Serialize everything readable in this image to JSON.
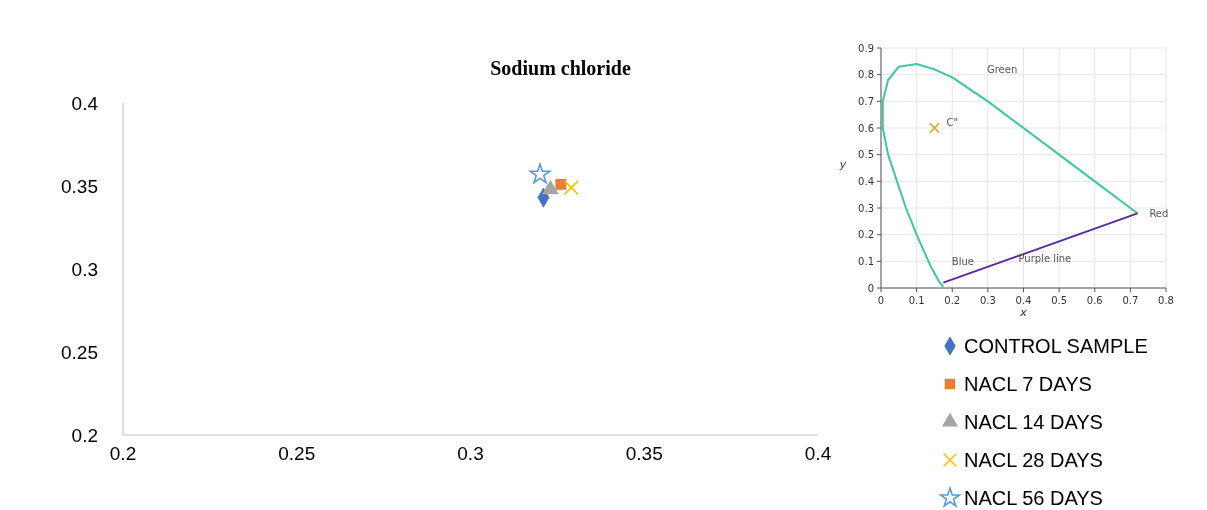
{
  "chart_data": [
    {
      "type": "scatter",
      "title": "Sodium chloride",
      "xlim": [
        0.2,
        0.4
      ],
      "ylim": [
        0.2,
        0.4
      ],
      "xticks": [
        0.2,
        0.25,
        0.3,
        0.35,
        0.4
      ],
      "yticks": [
        0.2,
        0.25,
        0.3,
        0.35,
        0.4
      ],
      "grid": false,
      "legend": "bottom right",
      "series": [
        {
          "name": "CONTROL SAMPLE",
          "color": "#4472c4",
          "marker": "diamond",
          "x": [
            0.321
          ],
          "values": [
            0.343
          ]
        },
        {
          "name": "NACL 7 DAYS",
          "color": "#ed7d31",
          "marker": "square",
          "x": [
            0.326
          ],
          "values": [
            0.351
          ]
        },
        {
          "name": "NACL 14 DAYS",
          "color": "#a5a5a5",
          "marker": "triangle",
          "x": [
            0.323
          ],
          "values": [
            0.348
          ]
        },
        {
          "name": "NACL 28 DAYS",
          "color": "#ffc000",
          "marker": "cross",
          "x": [
            0.329
          ],
          "values": [
            0.349
          ]
        },
        {
          "name": "NACL 56 DAYS",
          "color": "#5b9bd5",
          "marker": "star",
          "x": [
            0.32
          ],
          "values": [
            0.357
          ]
        }
      ]
    },
    {
      "type": "line",
      "xlabel": "x",
      "ylabel": "y",
      "xlim": [
        0,
        0.8
      ],
      "ylim": [
        0,
        0.9
      ],
      "xticks": [
        0,
        0.1,
        0.2,
        0.3,
        0.4,
        0.5,
        0.6,
        0.7,
        0.8
      ],
      "yticks": [
        0,
        0.1,
        0.2,
        0.3,
        0.4,
        0.5,
        0.6,
        0.7,
        0.8,
        0.9
      ],
      "grid": true,
      "legend": false,
      "series": [
        {
          "color": "#3cc8a0",
          "marker": "none",
          "x": [
            0.175,
            0.165,
            0.14,
            0.1,
            0.07,
            0.045,
            0.02,
            0.005,
            0.005,
            0.02,
            0.05,
            0.1,
            0.15,
            0.2,
            0.3,
            0.4,
            0.5,
            0.6,
            0.7,
            0.72
          ],
          "values": [
            0.005,
            0.02,
            0.08,
            0.2,
            0.3,
            0.4,
            0.5,
            0.6,
            0.7,
            0.78,
            0.83,
            0.84,
            0.82,
            0.79,
            0.7,
            0.6,
            0.5,
            0.4,
            0.3,
            0.28
          ]
        },
        {
          "color": "#5a2ca0",
          "marker": "none",
          "x": [
            0.72,
            0.175
          ],
          "values": [
            0.28,
            0.02
          ]
        },
        {
          "type": "scatter",
          "color": "#f0a020",
          "marker": "cross",
          "x": [
            0.15
          ],
          "values": [
            0.6
          ]
        }
      ],
      "annotations": [
        "Green",
        "Red",
        "Blue",
        "Purple line",
        "C\""
      ]
    }
  ]
}
